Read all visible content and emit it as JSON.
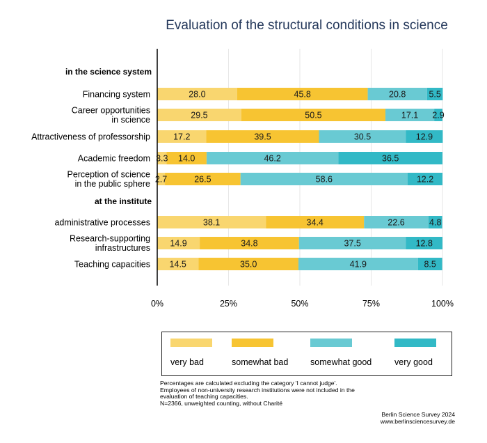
{
  "chart_data": {
    "type": "bar",
    "orientation": "horizontal",
    "stacked": true,
    "title": "Evaluation of the structural conditions in science",
    "groups": [
      {
        "name": "in the science system",
        "items": [
          {
            "label": [
              "Financing system"
            ],
            "values": [
              28.0,
              45.8,
              20.8,
              5.5
            ]
          },
          {
            "label": [
              "Career opportunities",
              "in science"
            ],
            "values": [
              29.5,
              50.5,
              17.1,
              2.9
            ]
          },
          {
            "label": [
              "Attractiveness of professorship"
            ],
            "values": [
              17.2,
              39.5,
              30.5,
              12.9
            ]
          },
          {
            "label": [
              "Academic freedom"
            ],
            "values": [
              3.3,
              14.0,
              46.2,
              36.5
            ]
          },
          {
            "label": [
              "Perception of science",
              "in the public sphere"
            ],
            "values": [
              2.7,
              26.5,
              58.6,
              12.2
            ]
          }
        ]
      },
      {
        "name": "at the institute",
        "items": [
          {
            "label": [
              "administrative processes"
            ],
            "values": [
              38.1,
              34.4,
              22.6,
              4.8
            ]
          },
          {
            "label": [
              "Research-supporting",
              "infrastructures"
            ],
            "values": [
              14.9,
              34.8,
              37.5,
              12.8
            ]
          },
          {
            "label": [
              "Teaching capacities"
            ],
            "values": [
              14.5,
              35.0,
              41.9,
              8.5
            ]
          }
        ]
      }
    ],
    "x_ticks": [
      "0%",
      "25%",
      "50%",
      "75%",
      "100%"
    ],
    "xlim": [
      0,
      100
    ],
    "grid": "vertical",
    "legend": {
      "placement": "bottom",
      "entries": [
        {
          "name": "very bad",
          "color": "#f9d66f"
        },
        {
          "name": "somewhat bad",
          "color": "#f7c432"
        },
        {
          "name": "somewhat good",
          "color": "#69cad3"
        },
        {
          "name": "very good",
          "color": "#32b9c6"
        }
      ]
    }
  },
  "notes": [
    "Percentages are calculated excluding the category 'I cannot judge'.",
    "Employees of non-university research institutions were not included in the",
    "evaluation of teaching capacities.",
    "N=2366, unweighted counting, without Charité"
  ],
  "source": [
    "Berlin Science Survey 2024",
    "www.berlinsciencesurvey.de"
  ]
}
